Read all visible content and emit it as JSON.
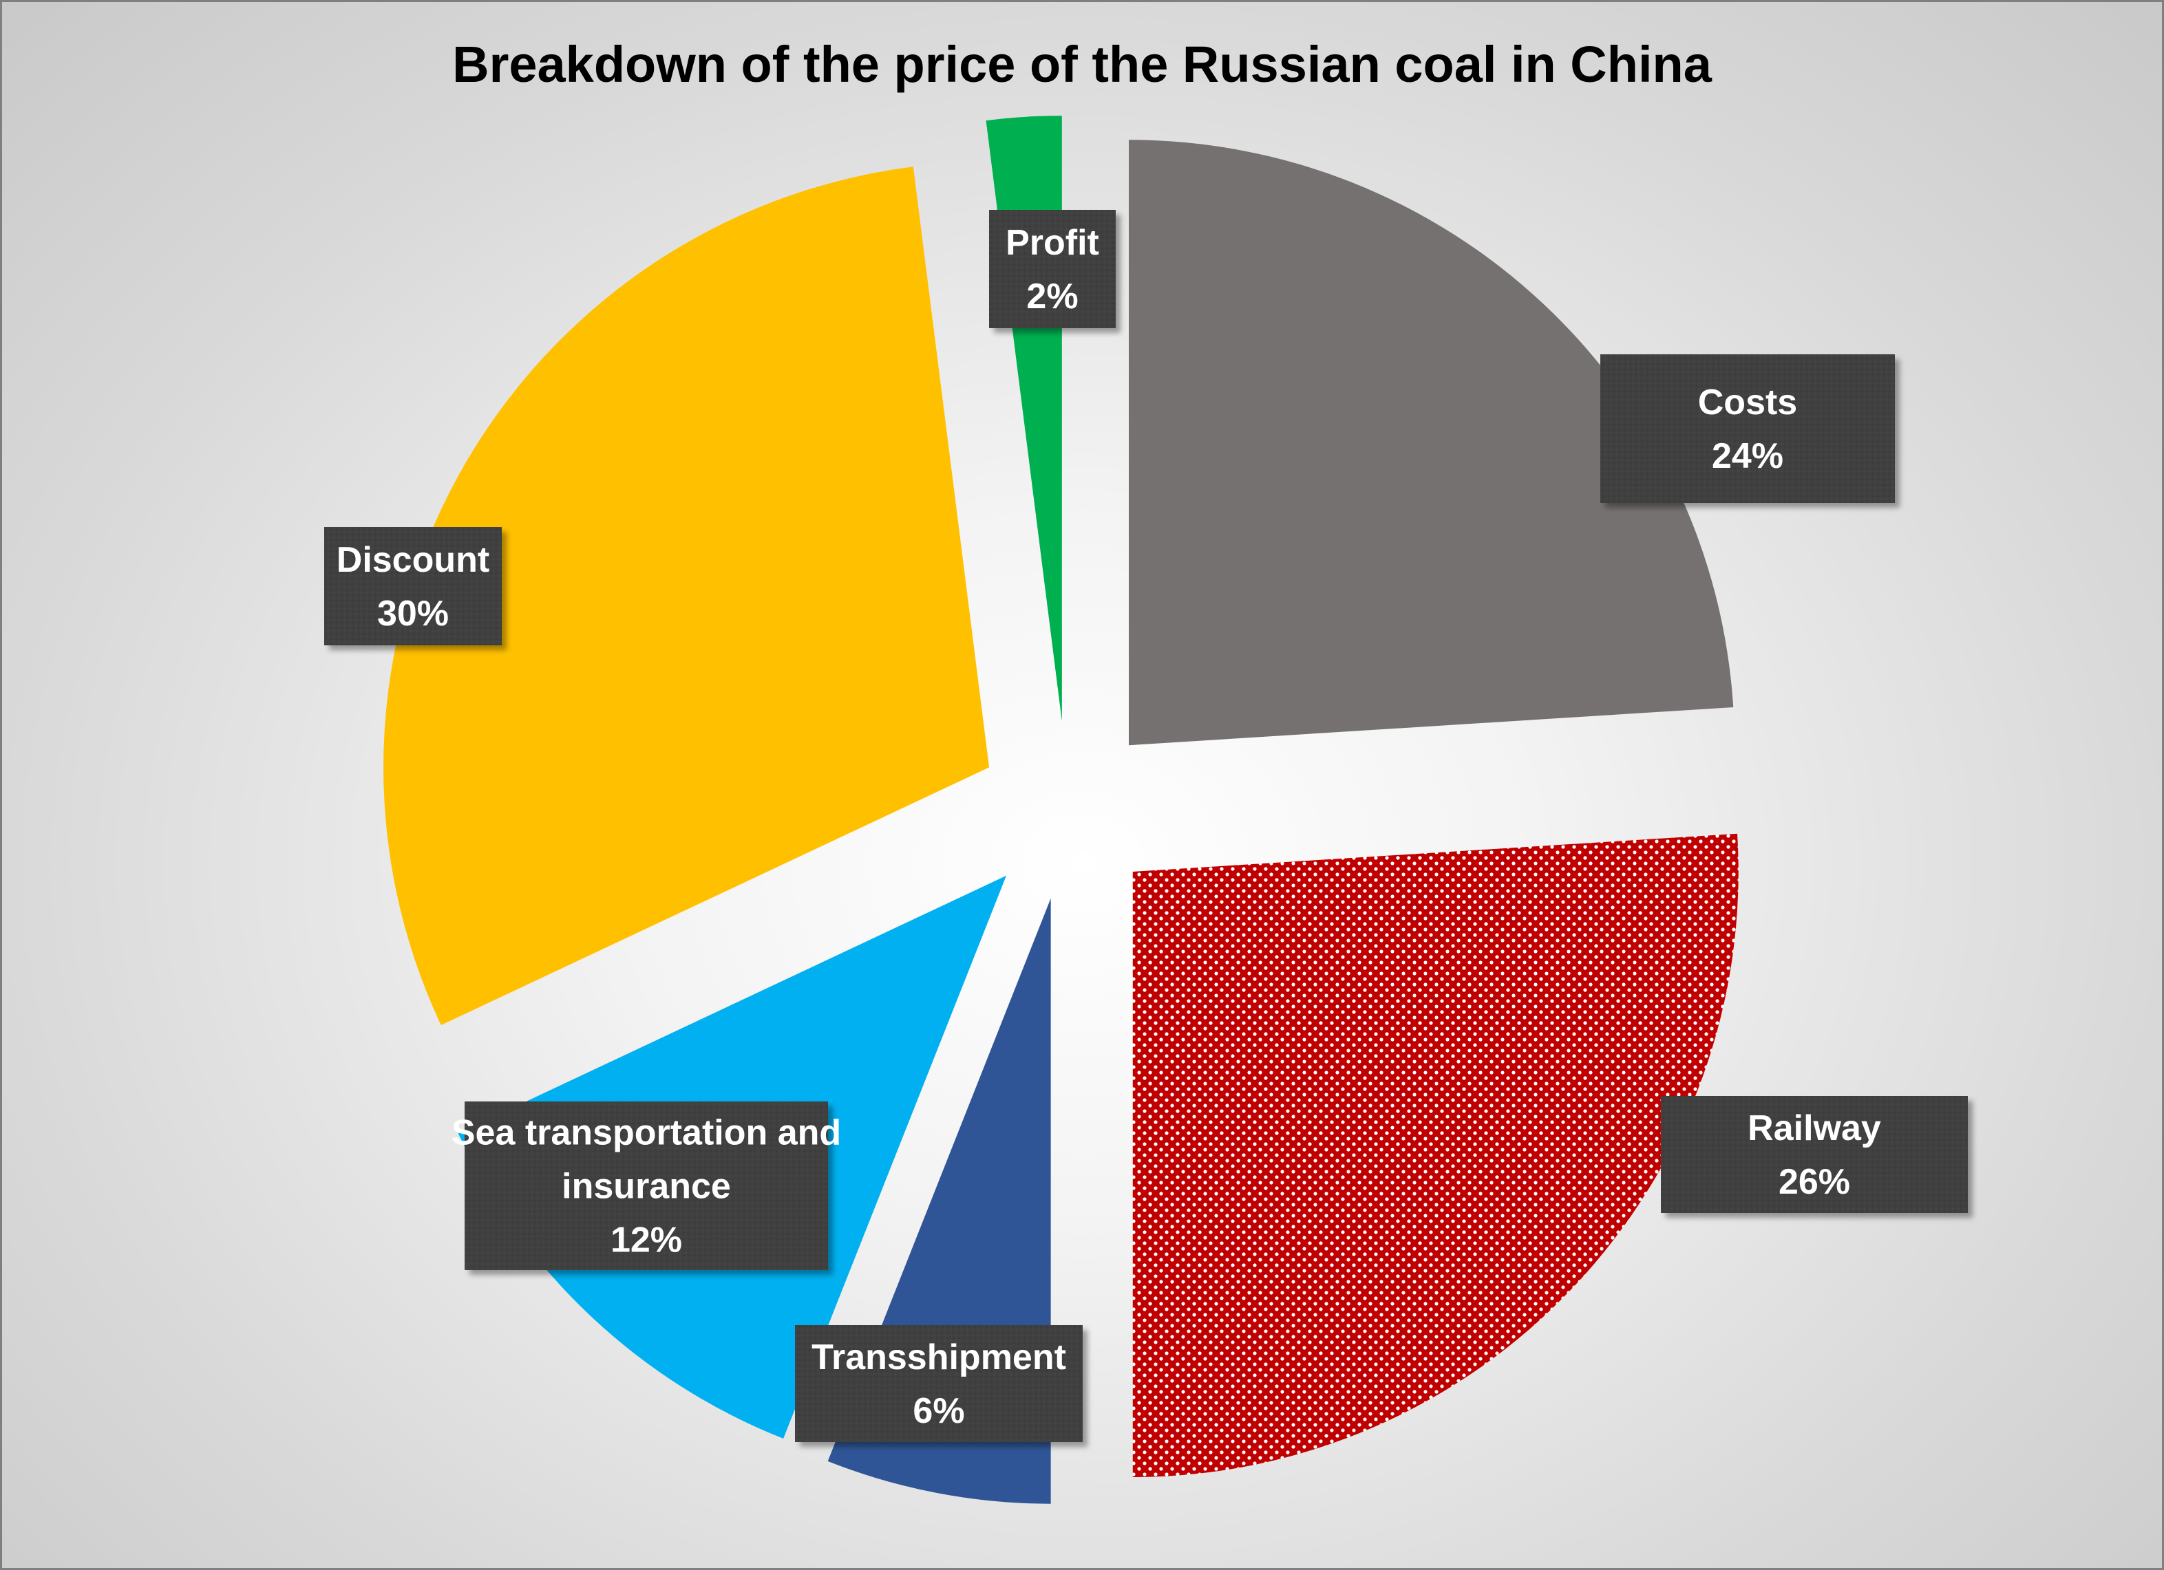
{
  "chart_data": {
    "type": "pie",
    "title": "Breakdown of the price of the Russian coal in China",
    "slices": [
      {
        "label": "Costs",
        "value": 24,
        "display": "24%",
        "color": "#767171",
        "pattern": "none"
      },
      {
        "label": "Railway",
        "value": 26,
        "display": "26%",
        "color": "#c00000",
        "pattern": "dots"
      },
      {
        "label": "Transshipment",
        "value": 6,
        "display": "6%",
        "color": "#2f5597",
        "pattern": "none"
      },
      {
        "label": "Sea transportation and insurance",
        "value": 12,
        "display": "12%",
        "color": "#00b0f0",
        "pattern": "none"
      },
      {
        "label": "Discount",
        "value": 30,
        "display": "30%",
        "color": "#ffc000",
        "pattern": "none"
      },
      {
        "label": "Profit",
        "value": 2,
        "display": "2%",
        "color": "#00b050",
        "pattern": "none"
      }
    ],
    "exploded": true,
    "data_labels": "category and percentage",
    "label_box_color": "#404040",
    "label_text_color": "#ffffff"
  }
}
